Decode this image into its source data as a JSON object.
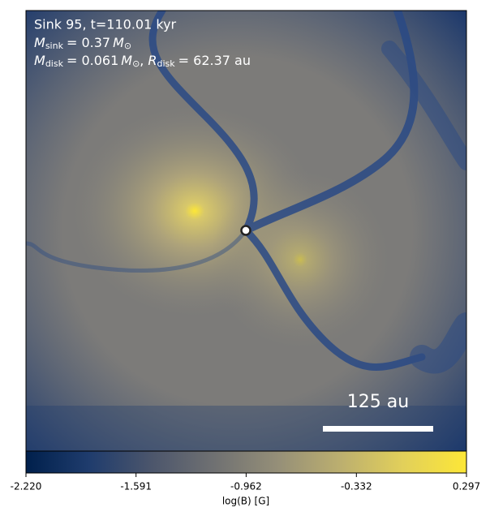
{
  "chart_data": {
    "type": "image",
    "annotations": {
      "line1": "Sink 95, t=110.01 kyr",
      "line2": [
        "M",
        "sink",
        "= 0.37",
        "M",
        "⊙"
      ],
      "line3": [
        "M",
        "disk",
        "= 0.061",
        "M",
        "⊙",
        ",",
        "R",
        "disk",
        "= 62.37 au"
      ]
    },
    "scale_bar": "125 au",
    "colorbar": {
      "label": "log(B) [G]",
      "clim": [
        -2.22,
        0.297
      ],
      "ticks": [
        {
          "value": -2.22,
          "label": "-2.220"
        },
        -1.591,
        -0.962,
        -0.332,
        0.297
      ],
      "colors": [
        "#00204c",
        "#1f3c6d",
        "#4c566c",
        "#707172",
        "#958f78",
        "#bcaf6f",
        "#e2d05a",
        "#fde737"
      ]
    }
  }
}
